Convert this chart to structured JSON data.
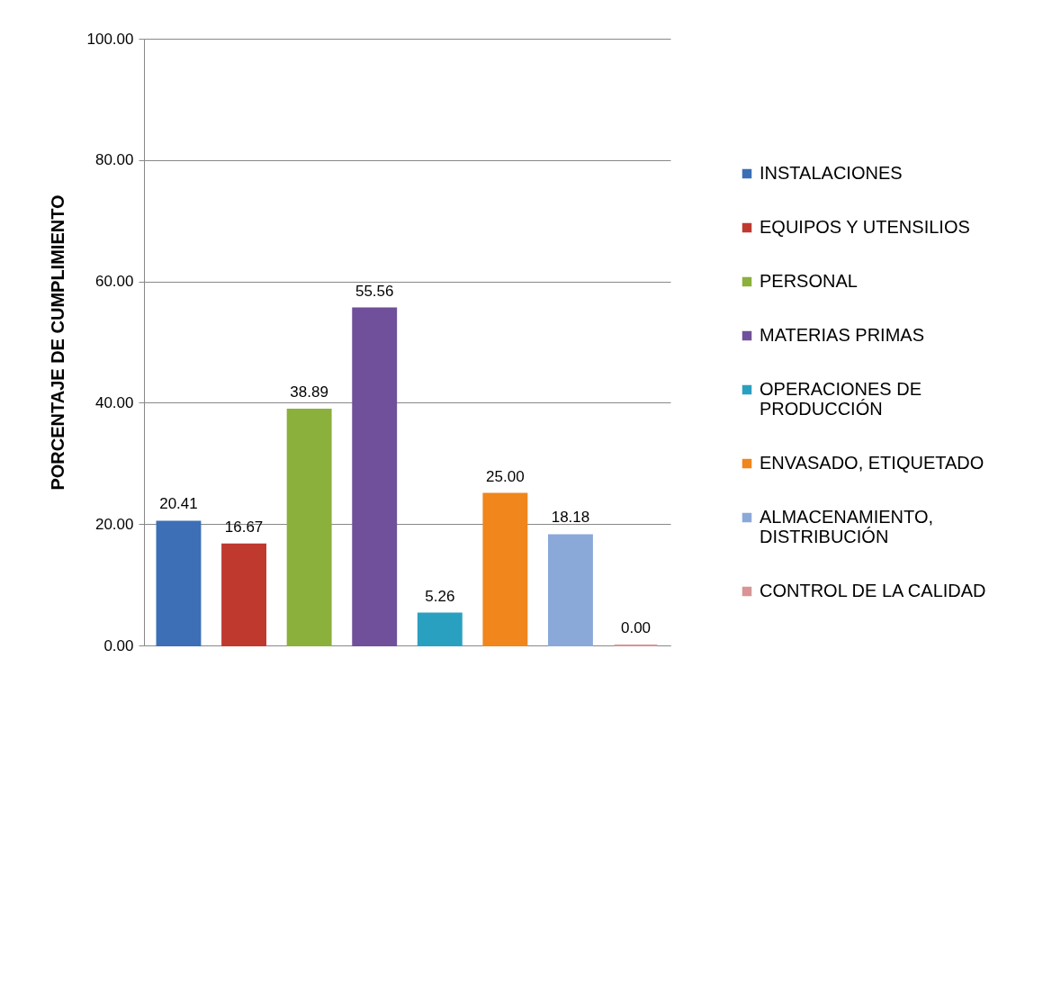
{
  "chart_data": {
    "type": "bar",
    "ylabel": "PORCENTAJE DE CUMPLIMIENTO",
    "categories": [
      null
    ],
    "series": [
      {
        "name": "INSTALACIONES",
        "color": "#3c6fb6",
        "values": [
          20.41
        ],
        "value_labels": [
          "20.41"
        ]
      },
      {
        "name": "EQUIPOS Y UTENSILIOS",
        "color": "#c0392f",
        "values": [
          16.67
        ],
        "value_labels": [
          "16.67"
        ]
      },
      {
        "name": "PERSONAL",
        "color": "#8bb03c",
        "values": [
          38.89
        ],
        "value_labels": [
          "38.89"
        ]
      },
      {
        "name": "MATERIAS PRIMAS",
        "color": "#70509a",
        "values": [
          55.56
        ],
        "value_labels": [
          "55.56"
        ]
      },
      {
        "name": "OPERACIONES DE PRODUCCIÓN",
        "color": "#2aa0c0",
        "values": [
          5.26
        ],
        "value_labels": [
          "5.26"
        ]
      },
      {
        "name": "ENVASADO, ETIQUETADO",
        "color": "#f0861c",
        "values": [
          25.0
        ],
        "value_labels": [
          "25.00"
        ]
      },
      {
        "name": "ALMACENAMIENTO, DISTRIBUCIÓN",
        "color": "#8aa9d8",
        "values": [
          18.18
        ],
        "value_labels": [
          "18.18"
        ]
      },
      {
        "name": "CONTROL DE LA CALIDAD",
        "color": "#d99495",
        "values": [
          0.0
        ],
        "value_labels": [
          "0.00"
        ]
      }
    ],
    "ylim": [
      0,
      100
    ],
    "yticks": [
      {
        "value": 0,
        "label": "0.00"
      },
      {
        "value": 20,
        "label": "20.00"
      },
      {
        "value": 40,
        "label": "40.00"
      },
      {
        "value": 60,
        "label": "60.00"
      },
      {
        "value": 80,
        "label": "80.00"
      },
      {
        "value": 100,
        "label": "100.00"
      }
    ],
    "grid": "y",
    "legend": "right",
    "tick_labels": "y"
  }
}
